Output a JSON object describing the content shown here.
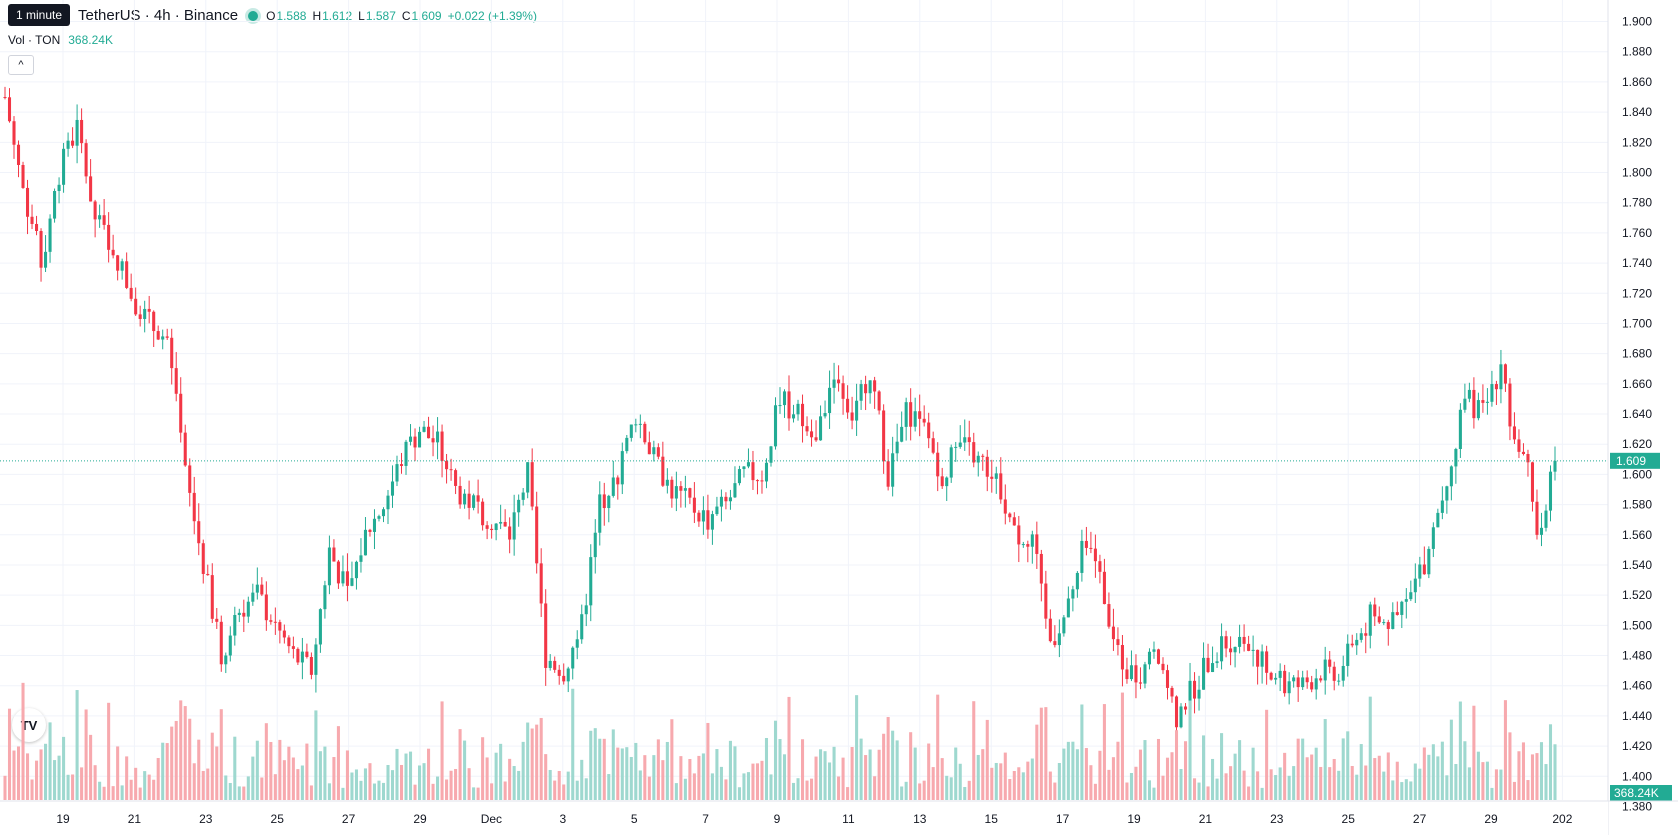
{
  "header": {
    "tooltip": "1 minute",
    "symbol": "TetherUS · 4h · Binance",
    "open_label": "O",
    "open": "1.588",
    "high_label": "H",
    "high": "1.612",
    "low_label": "L",
    "low": "1.587",
    "close_label": "C",
    "close": "1.609",
    "change": "+0.022 (+1.39%)",
    "vol_label": "Vol · TON",
    "vol_value": "368.24K"
  },
  "colors": {
    "up": "#22ab94",
    "down": "#f23645",
    "up_vol": "#9ed8cf",
    "down_vol": "#f7a9ae",
    "grid": "#f0f3fa",
    "axis_text": "#131722"
  },
  "icons": {
    "collapse": "chevron-up-icon",
    "logo": "tradingview-logo",
    "settings": "gear-icon"
  },
  "collapse_glyph": "^",
  "logo_text": "TV",
  "settings_glyph": "⚙",
  "chart_data": {
    "type": "candlestick",
    "timeframe": "4h",
    "x_tick_labels": [
      "19",
      "21",
      "23",
      "25",
      "27",
      "29",
      "Dec",
      "3",
      "5",
      "7",
      "9",
      "11",
      "13",
      "15",
      "17",
      "19",
      "21",
      "23",
      "25",
      "27",
      "29",
      "202"
    ],
    "y_tick_labels": [
      "1.900",
      "1.880",
      "1.860",
      "1.840",
      "1.820",
      "1.800",
      "1.780",
      "1.760",
      "1.740",
      "1.720",
      "1.700",
      "1.680",
      "1.660",
      "1.640",
      "1.620",
      "1.600",
      "1.580",
      "1.560",
      "1.540",
      "1.520",
      "1.500",
      "1.480",
      "1.460",
      "1.440",
      "1.420",
      "1.400",
      "1.380"
    ],
    "ylim": [
      1.378,
      1.906
    ],
    "last_price": "1.609",
    "last_volume": "368.24K",
    "anchors": [
      [
        0,
        1.85
      ],
      [
        4,
        1.79
      ],
      [
        8,
        1.74
      ],
      [
        12,
        1.8
      ],
      [
        16,
        1.83
      ],
      [
        20,
        1.77
      ],
      [
        24,
        1.75
      ],
      [
        28,
        1.72
      ],
      [
        32,
        1.7
      ],
      [
        36,
        1.69
      ],
      [
        40,
        1.6
      ],
      [
        44,
        1.54
      ],
      [
        48,
        1.48
      ],
      [
        52,
        1.51
      ],
      [
        56,
        1.52
      ],
      [
        60,
        1.5
      ],
      [
        64,
        1.48
      ],
      [
        68,
        1.47
      ],
      [
        72,
        1.55
      ],
      [
        76,
        1.52
      ],
      [
        80,
        1.56
      ],
      [
        84,
        1.58
      ],
      [
        88,
        1.61
      ],
      [
        92,
        1.63
      ],
      [
        96,
        1.62
      ],
      [
        100,
        1.59
      ],
      [
        104,
        1.58
      ],
      [
        108,
        1.57
      ],
      [
        112,
        1.56
      ],
      [
        116,
        1.6
      ],
      [
        120,
        1.48
      ],
      [
        124,
        1.47
      ],
      [
        128,
        1.5
      ],
      [
        132,
        1.58
      ],
      [
        136,
        1.6
      ],
      [
        140,
        1.64
      ],
      [
        144,
        1.61
      ],
      [
        148,
        1.59
      ],
      [
        152,
        1.58
      ],
      [
        156,
        1.57
      ],
      [
        160,
        1.58
      ],
      [
        164,
        1.6
      ],
      [
        168,
        1.6
      ],
      [
        172,
        1.65
      ],
      [
        176,
        1.64
      ],
      [
        180,
        1.62
      ],
      [
        184,
        1.67
      ],
      [
        188,
        1.64
      ],
      [
        192,
        1.67
      ],
      [
        196,
        1.6
      ],
      [
        200,
        1.64
      ],
      [
        204,
        1.63
      ],
      [
        208,
        1.6
      ],
      [
        212,
        1.62
      ],
      [
        216,
        1.61
      ],
      [
        220,
        1.6
      ],
      [
        224,
        1.56
      ],
      [
        228,
        1.56
      ],
      [
        232,
        1.49
      ],
      [
        236,
        1.51
      ],
      [
        240,
        1.56
      ],
      [
        244,
        1.52
      ],
      [
        248,
        1.47
      ],
      [
        252,
        1.47
      ],
      [
        256,
        1.48
      ],
      [
        260,
        1.44
      ],
      [
        264,
        1.46
      ],
      [
        268,
        1.48
      ],
      [
        272,
        1.49
      ],
      [
        276,
        1.49
      ],
      [
        280,
        1.47
      ],
      [
        284,
        1.46
      ],
      [
        288,
        1.46
      ],
      [
        292,
        1.47
      ],
      [
        296,
        1.47
      ],
      [
        300,
        1.49
      ],
      [
        304,
        1.51
      ],
      [
        308,
        1.5
      ],
      [
        312,
        1.52
      ],
      [
        316,
        1.55
      ],
      [
        320,
        1.6
      ],
      [
        324,
        1.65
      ],
      [
        328,
        1.64
      ],
      [
        332,
        1.67
      ],
      [
        336,
        1.61
      ],
      [
        338,
        1.6
      ],
      [
        340,
        1.56
      ],
      [
        344,
        1.609
      ]
    ],
    "volume_level": "368.24K (last bar)"
  }
}
